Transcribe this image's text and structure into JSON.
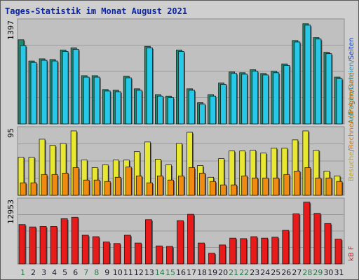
{
  "title": "Tages-Statistik im Monat August 2021",
  "colors": {
    "weekday_label": "#1c1c2a",
    "weekend_label": "#2a7a4a",
    "anfragen": "#1f8a70",
    "dateien": "#28c8e8",
    "seiten": "#1ea0d8",
    "besuche": "#e8e832",
    "rechner": "#f08a10",
    "kb": "#e81a1a"
  },
  "legend": {
    "top": [
      {
        "text": "Anfragen",
        "color": "#1f8a70"
      },
      {
        "text": "/",
        "color": "#666"
      },
      {
        "text": "Dateien",
        "color": "#1ea0d8"
      },
      {
        "text": "/",
        "color": "#666"
      },
      {
        "text": "Seiten",
        "color": "#1040c0"
      }
    ],
    "middle": [
      {
        "text": "Besuche",
        "color": "#c8a800"
      },
      {
        "text": "/",
        "color": "#666"
      },
      {
        "text": "Rechner (IP-Adressen)",
        "color": "#e07000"
      }
    ],
    "bottom": [
      {
        "text": "kB F",
        "color": "#e81a1a"
      }
    ]
  },
  "chart_data": {
    "type": "bar",
    "title": "Tages-Statistik im Monat August 2021",
    "categories": [
      "1",
      "2",
      "3",
      "4",
      "5",
      "6",
      "7",
      "8",
      "9",
      "10",
      "11",
      "12",
      "13",
      "14",
      "15",
      "16",
      "17",
      "18",
      "19",
      "20",
      "21",
      "22",
      "23",
      "24",
      "25",
      "26",
      "27",
      "28",
      "29",
      "30",
      "31"
    ],
    "weekend_days": [
      1,
      7,
      8,
      14,
      15,
      21,
      22,
      28,
      29
    ],
    "panels": [
      {
        "name": "top",
        "ymax_label": "1397",
        "ymax": 1397,
        "series": [
          {
            "name": "Anfragen",
            "values": [
              1150,
              860,
              890,
              880,
              1010,
              1040,
              660,
              660,
              470,
              460,
              650,
              480,
              1060,
              400,
              380,
              1010,
              480,
              290,
              400,
              560,
              710,
              700,
              740,
              690,
              720,
              820,
              1140,
              1370,
              1180,
              980,
              640
            ]
          },
          {
            "name": "Dateien",
            "values": [
              1070,
              840,
              870,
              860,
              990,
              1020,
              640,
              640,
              450,
              440,
              630,
              460,
              1040,
              380,
              360,
              990,
              460,
              270,
              380,
              540,
              690,
              680,
              720,
              670,
              700,
              800,
              1120,
              1350,
              1160,
              960,
              620
            ]
          }
        ]
      },
      {
        "name": "middle",
        "ymax_label": "95",
        "ymax": 95,
        "series": [
          {
            "name": "Besuche",
            "values": [
              55,
              55,
              81,
              72,
              75,
              93,
              51,
              40,
              44,
              51,
              51,
              63,
              77,
              52,
              44,
              75,
              91,
              43,
              26,
              53,
              64,
              64,
              65,
              61,
              68,
              68,
              80,
              93,
              65,
              35,
              28
            ]
          },
          {
            "name": "Rechner (IP-Adressen)",
            "values": [
              18,
              18,
              30,
              30,
              32,
              40,
              22,
              22,
              20,
              26,
              41,
              28,
              18,
              28,
              22,
              28,
              40,
              32,
              20,
              15,
              15,
              28,
              25,
              25,
              25,
              30,
              35,
              40,
              25,
              25,
              20
            ]
          }
        ]
      },
      {
        "name": "bottom",
        "ymax_label": "12953",
        "ymax": 12953,
        "series": [
          {
            "name": "kB F",
            "values": [
              8100,
              7600,
              7700,
              7700,
              9300,
              9600,
              5900,
              5600,
              4500,
              4200,
              5900,
              4300,
              9100,
              3700,
              3600,
              8900,
              10200,
              4300,
              2200,
              3900,
              5300,
              5200,
              5600,
              5300,
              5500,
              6900,
              10300,
              12700,
              10400,
              8300,
              5100
            ]
          }
        ]
      }
    ]
  }
}
